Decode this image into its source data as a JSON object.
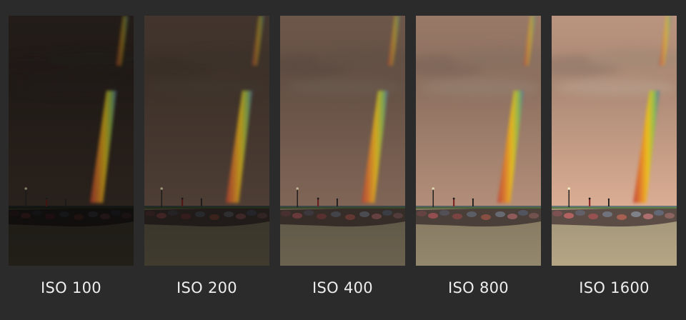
{
  "panels": [
    {
      "label": "ISO 100",
      "exposure": 0.18
    },
    {
      "label": "ISO 200",
      "exposure": 0.34
    },
    {
      "label": "ISO 400",
      "exposure": 0.56
    },
    {
      "label": "ISO 800",
      "exposure": 0.78
    },
    {
      "label": "ISO 1600",
      "exposure": 0.95
    }
  ],
  "colors": {
    "background": "#2b2b2b",
    "label": "#eeeeee",
    "sky_base": "#e6b79c",
    "water_base": "#c7b793",
    "jetty_base": "#6b5a52"
  },
  "icons": [
    "rainbow-streak",
    "lamp-post",
    "person-silhouette",
    "rock-jetty"
  ]
}
